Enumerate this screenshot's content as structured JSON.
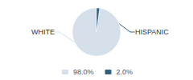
{
  "chart_data": {
    "type": "pie",
    "categories": [
      "WHITE",
      "HISPANIC"
    ],
    "values": [
      98.0,
      2.0
    ],
    "value_labels": [
      "98.0%",
      "2.0%"
    ],
    "colors": [
      "#d6e0ea",
      "#2e6080"
    ],
    "legend": "bottom"
  }
}
